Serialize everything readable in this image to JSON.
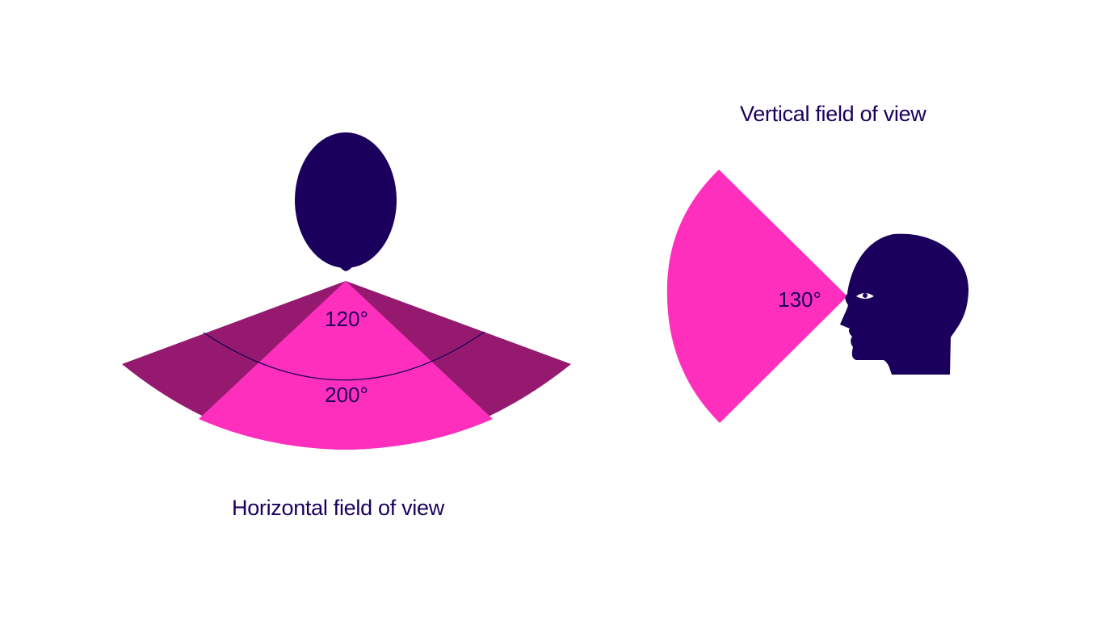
{
  "colors": {
    "head": "#1a005c",
    "magenta": "#ff2fbd",
    "peripheral": "#951a6f",
    "background": "#ffffff",
    "text": "#1a005c"
  },
  "horizontal": {
    "caption": "Horizontal field of view",
    "inner_angle_label": "120°",
    "outer_angle_label": "200°",
    "inner_angle_deg": 120,
    "outer_angle_deg": 200
  },
  "vertical": {
    "caption": "Vertical field of view",
    "angle_label": "130°",
    "angle_deg": 130
  },
  "icons": {
    "top_head": "head-top-view-icon",
    "side_head": "head-profile-icon",
    "eye": "eye-icon"
  }
}
